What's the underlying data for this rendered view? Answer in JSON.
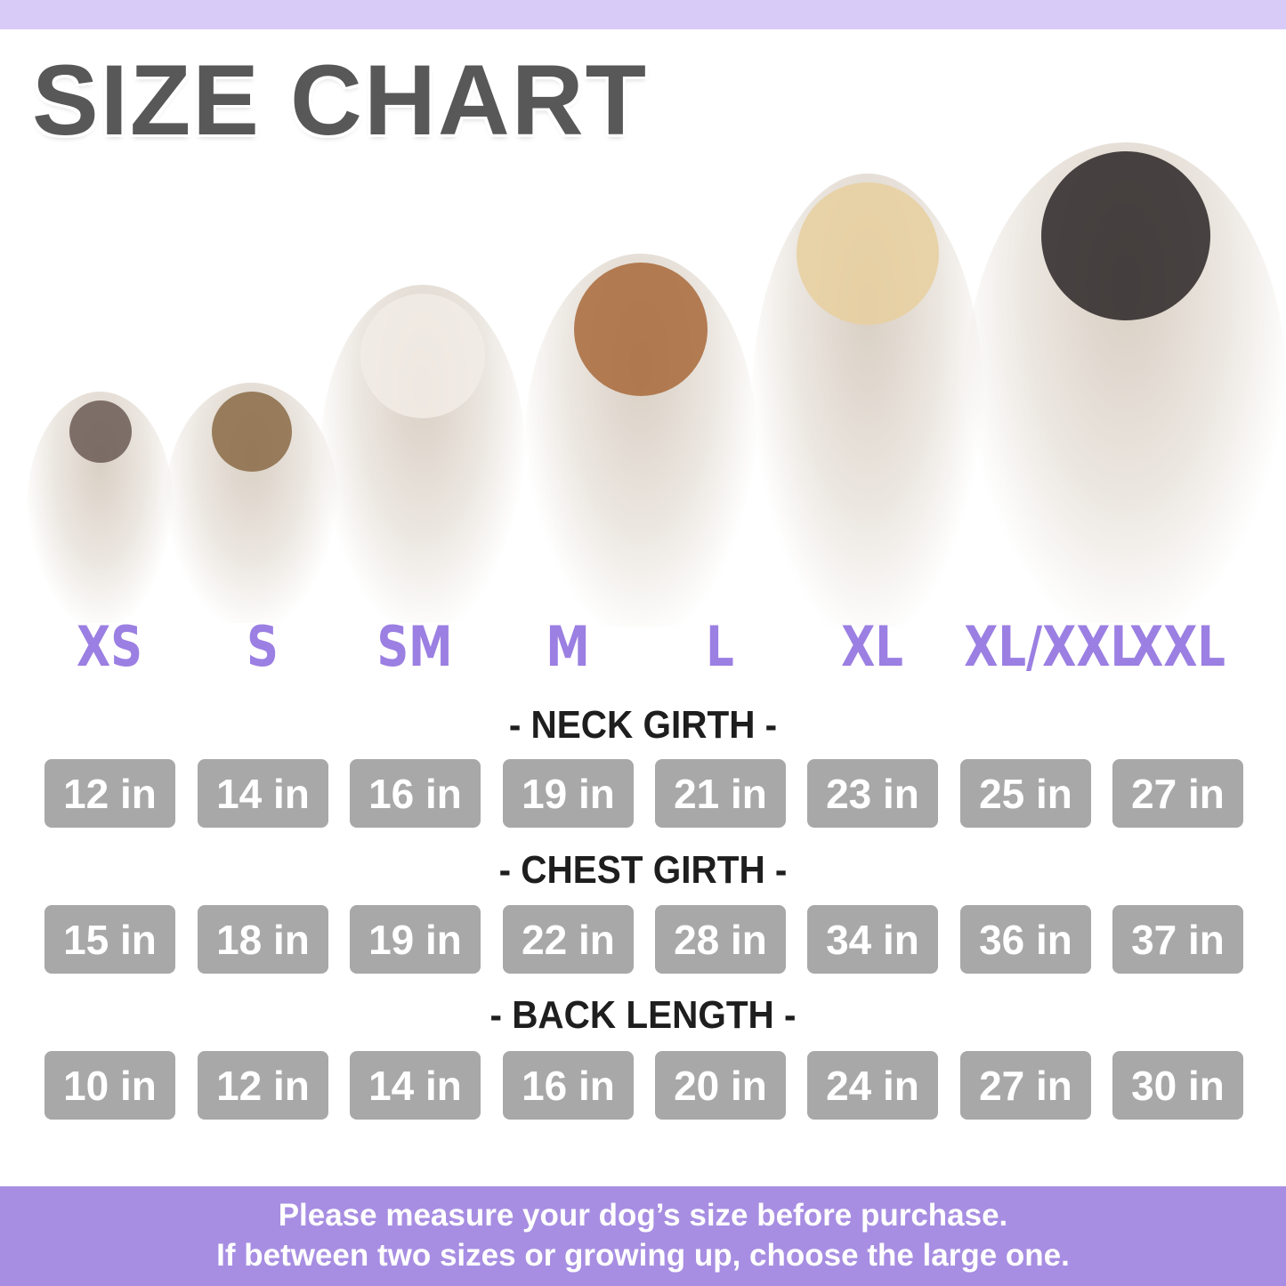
{
  "title": "SIZE CHART",
  "colors": {
    "accent": "#9b7fe2",
    "band_top": "#d8cbf8",
    "band_bottom": "#a78ee2",
    "box": "#a8a8a8"
  },
  "sizes": [
    "XS",
    "S",
    "SM",
    "M",
    "L",
    "XL",
    "XL/XXL",
    "XXL"
  ],
  "dogs": [
    "chihuahua",
    "yorkshire-terrier",
    "french-bulldog",
    "beagle",
    "golden-retriever",
    "bernese-mountain-dog"
  ],
  "measurements": [
    {
      "label": "- NECK GIRTH -",
      "values": [
        "12 in",
        "14 in",
        "16 in",
        "19 in",
        "21 in",
        "23 in",
        "25 in",
        "27 in"
      ]
    },
    {
      "label": "- CHEST GIRTH -",
      "values": [
        "15 in",
        "18 in",
        "19 in",
        "22 in",
        "28 in",
        "34 in",
        "36 in",
        "37 in"
      ]
    },
    {
      "label": "- BACK LENGTH -",
      "values": [
        "10 in",
        "12 in",
        "14 in",
        "16 in",
        "20 in",
        "24 in",
        "27 in",
        "30 in"
      ]
    }
  ],
  "footer": {
    "line1": "Please measure your dog’s size before purchase.",
    "line2": "If between two sizes or growing up, choose the large one."
  }
}
